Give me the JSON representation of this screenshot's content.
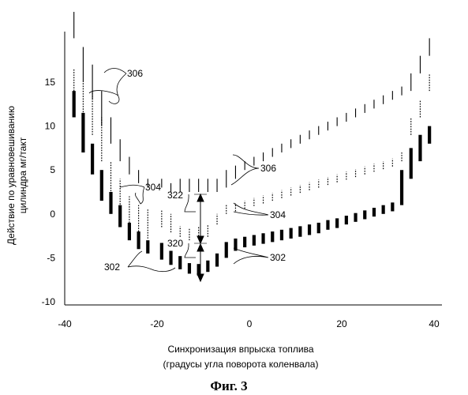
{
  "chart_data": {
    "type": "scatter",
    "xlabel_line1": "Синхронизация впрыска топлива",
    "xlabel_line2": "(градусы угла поворота коленвала)",
    "ylabel_line1": "Действие по уравновешиванию",
    "ylabel_line2": "цилиндра мг/такт",
    "caption": "Фиг. 3",
    "xlim": [
      -40,
      42
    ],
    "ylim": [
      -10,
      17
    ],
    "x_ticks": [
      {
        "v": -40,
        "label": "-40"
      },
      {
        "v": -20,
        "label": "-20"
      },
      {
        "v": 0,
        "label": "0"
      },
      {
        "v": 20,
        "label": "20"
      },
      {
        "v": 40,
        "label": "40"
      }
    ],
    "y_ticks": [
      {
        "v": 15,
        "label": "15"
      },
      {
        "v": 10,
        "label": "10"
      },
      {
        "v": 5,
        "label": "5"
      },
      {
        "v": 0,
        "label": "0"
      },
      {
        "v": -5,
        "label": "-5"
      },
      {
        "v": -10,
        "label": "-10"
      }
    ],
    "series": [
      {
        "style": "thick",
        "x": [
          -38,
          -36,
          -34,
          -32,
          -30,
          -28,
          -26,
          -24,
          -22,
          -19,
          -17,
          -15,
          -13,
          -11,
          -9,
          -7,
          -5,
          -3,
          -1,
          1,
          3,
          5,
          7,
          9,
          11,
          13,
          15,
          17,
          19,
          21,
          23,
          25,
          27,
          29,
          31,
          33,
          35,
          37,
          39
        ],
        "y_low": [
          11,
          7,
          4.5,
          1.5,
          0,
          -1.5,
          -3,
          -4,
          -4.5,
          -5.2,
          -5.8,
          -6.3,
          -6.8,
          -7,
          -6.6,
          -6,
          -5,
          -4.2,
          -3.8,
          -3.6,
          -3.4,
          -3.2,
          -3,
          -2.8,
          -2.6,
          -2.4,
          -2.2,
          -1.8,
          -1.6,
          -1.2,
          -0.9,
          -0.6,
          -0.3,
          0,
          0.3,
          1,
          4,
          6,
          8
        ],
        "y_high": [
          14,
          11.5,
          8,
          5,
          2.5,
          1,
          -1,
          -2,
          -3,
          -3.3,
          -4.2,
          -4.8,
          -5.6,
          -5.7,
          -5.3,
          -4.5,
          -3.2,
          -2.8,
          -2.6,
          -2.4,
          -2.2,
          -2.0,
          -1.8,
          -1.6,
          -1.4,
          -1.2,
          -1.0,
          -0.7,
          -0.5,
          -0.2,
          0.1,
          0.4,
          0.7,
          1,
          1.3,
          5,
          7.5,
          9,
          10
        ]
      },
      {
        "style": "dotted",
        "x": [
          -38,
          -36,
          -34,
          -32,
          -30,
          -28,
          -26,
          -24,
          -22,
          -19,
          -17,
          -15,
          -13,
          -11,
          -9,
          -7,
          -5,
          -3,
          -1,
          1,
          3,
          5,
          7,
          9,
          11,
          13,
          15,
          17,
          19,
          21,
          23,
          25,
          27,
          29,
          31,
          33,
          35,
          37,
          39
        ],
        "y_low": [
          14,
          11,
          9,
          6,
          2,
          0.5,
          -1,
          -2,
          -2.8,
          -1.5,
          -2.1,
          -2.6,
          -3.0,
          -2.8,
          -2.6,
          -1.2,
          0,
          0.3,
          0.6,
          0.9,
          1.2,
          1.5,
          1.8,
          2.1,
          2.4,
          2.7,
          3.0,
          3.3,
          3.6,
          3.9,
          4.2,
          4.5,
          4.8,
          5.1,
          5.4,
          6,
          9,
          11,
          14
        ],
        "y_high": [
          16.5,
          15,
          14,
          11,
          6,
          4,
          2,
          1,
          0.5,
          0.5,
          0,
          -1.4,
          -1.6,
          -1.4,
          -1.2,
          0,
          1,
          1.2,
          1.5,
          1.8,
          2.1,
          2.4,
          2.7,
          3.0,
          3.3,
          3.6,
          3.9,
          4.2,
          4.5,
          4.8,
          5.1,
          5.4,
          5.7,
          6.0,
          6.3,
          7,
          11,
          13,
          16
        ]
      },
      {
        "style": "thin",
        "x": [
          -38,
          -36,
          -34,
          -32,
          -30,
          -28,
          -26,
          -24,
          -22,
          -19,
          -17,
          -15,
          -13,
          -11,
          -9,
          -7,
          -5,
          -3,
          -1,
          1,
          3,
          5,
          7,
          9,
          11,
          13,
          15,
          17,
          19,
          21,
          23,
          25,
          27,
          29,
          31,
          33,
          35,
          37,
          39
        ],
        "y_low": [
          20,
          15,
          13,
          10,
          8,
          6,
          4.5,
          3.5,
          3,
          3,
          2.5,
          2.5,
          2.5,
          2.5,
          2.5,
          2.5,
          3,
          4,
          5,
          5.5,
          6,
          6.5,
          7,
          7.5,
          8,
          8.5,
          9,
          9.5,
          10,
          10.5,
          11,
          11.5,
          12,
          12.5,
          13,
          13.5,
          14,
          16,
          18
        ],
        "y_high": [
          23,
          19,
          17,
          14,
          11,
          8.5,
          6.5,
          5,
          4,
          4,
          3.5,
          4,
          4,
          4,
          4,
          4,
          5,
          5.5,
          6,
          6.5,
          7,
          7.5,
          8,
          8.5,
          9,
          9.5,
          10,
          10.5,
          11,
          11.5,
          12,
          12.5,
          13,
          13.5,
          14,
          14.5,
          16,
          18,
          20
        ]
      }
    ],
    "annotations": [
      {
        "label": "306"
      },
      {
        "label": "304"
      },
      {
        "label": "302"
      },
      {
        "label": "322"
      },
      {
        "label": "320"
      },
      {
        "label": "306"
      },
      {
        "label": "304"
      },
      {
        "label": "302"
      }
    ]
  }
}
